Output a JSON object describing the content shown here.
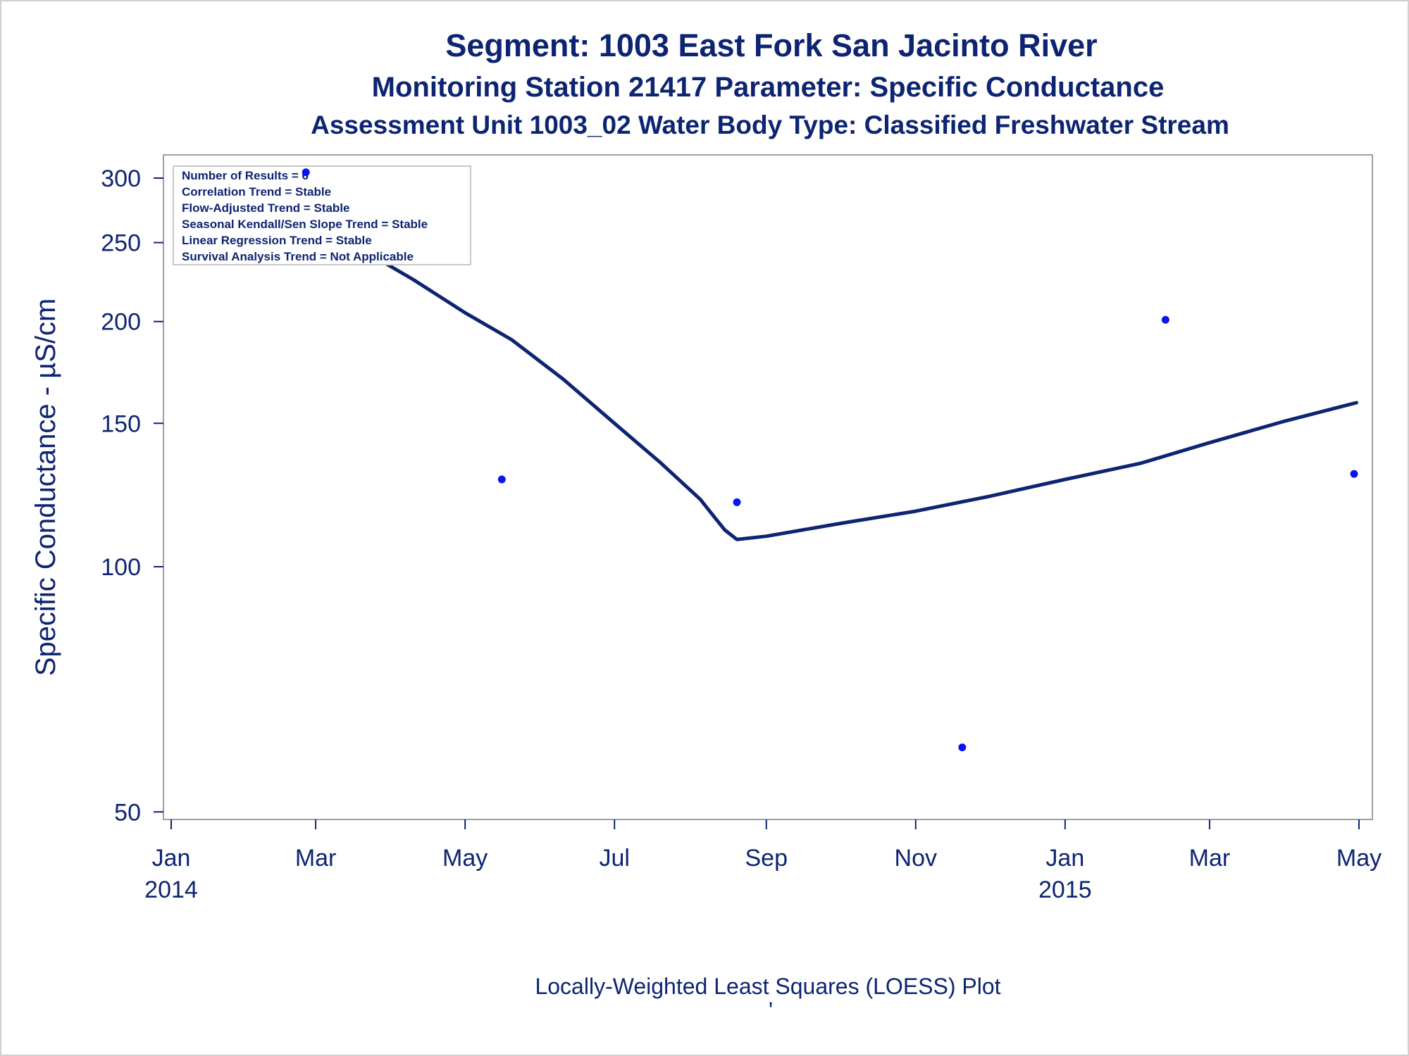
{
  "chart_data": {
    "type": "scatter",
    "title": "Segment: 1003  East Fork San Jacinto River",
    "subtitle": "Monitoring Station 21417 Parameter: Specific Conductance",
    "subtitle2": "Assessment Unit 1003_02   Water Body Type: Classified Freshwater Stream",
    "xlabel": "",
    "ylabel": "Specific Conductance -  µS/cm",
    "footnote": "Locally-Weighted Least Squares (LOESS) Plot",
    "footnote_mark": "'",
    "y_scale": "log",
    "ylim": [
      48,
      310
    ],
    "xlim": [
      "2014-01-01",
      "2015-05-01"
    ],
    "x_ticks": [
      {
        "date": "2014-01-01",
        "label": "Jan",
        "year": "2014"
      },
      {
        "date": "2014-03-01",
        "label": "Mar",
        "year": ""
      },
      {
        "date": "2014-05-01",
        "label": "May",
        "year": ""
      },
      {
        "date": "2014-07-01",
        "label": "Jul",
        "year": ""
      },
      {
        "date": "2014-09-01",
        "label": "Sep",
        "year": ""
      },
      {
        "date": "2014-11-01",
        "label": "Nov",
        "year": ""
      },
      {
        "date": "2015-01-01",
        "label": "Jan",
        "year": "2015"
      },
      {
        "date": "2015-03-01",
        "label": "Mar",
        "year": ""
      },
      {
        "date": "2015-05-01",
        "label": "May",
        "year": ""
      }
    ],
    "y_ticks": [
      50,
      100,
      150,
      200,
      250,
      300
    ],
    "grid": false,
    "series": [
      {
        "kind": "points",
        "color": "#0a14f0",
        "x": [
          "2014-02-25",
          "2014-05-16",
          "2014-08-20",
          "2014-11-20",
          "2015-02-11",
          "2015-04-29"
        ],
        "y": [
          305,
          128,
          120,
          60,
          201,
          130
        ]
      },
      {
        "kind": "line",
        "color": "#0d2472",
        "x": [
          "2014-02-25",
          "2014-03-20",
          "2014-04-10",
          "2014-05-01",
          "2014-05-20",
          "2014-06-10",
          "2014-07-01",
          "2014-07-20",
          "2014-08-05",
          "2014-08-15",
          "2014-08-20",
          "2014-09-01",
          "2014-10-01",
          "2014-11-01",
          "2014-12-01",
          "2015-01-01",
          "2015-02-01",
          "2015-03-01",
          "2015-04-01",
          "2015-04-30"
        ],
        "y": [
          270,
          245,
          225,
          205,
          190,
          170,
          150,
          134,
          121,
          111,
          108,
          109,
          113,
          117,
          122,
          128,
          134,
          142,
          151,
          159
        ]
      }
    ],
    "stats_box": [
      "Number of Results = 6",
      "Correlation Trend = Stable",
      "Flow-Adjusted Trend = Stable",
      "Seasonal Kendall/Sen Slope Trend = Stable",
      "Linear Regression Trend = Stable",
      "Survival Analysis Trend = Not Applicable"
    ],
    "stats_box_position": "top-left"
  },
  "colors": {
    "text": "#0d2472",
    "line": "#0d2472",
    "points": "#0a14f0",
    "frame": "#a0a0a0"
  }
}
